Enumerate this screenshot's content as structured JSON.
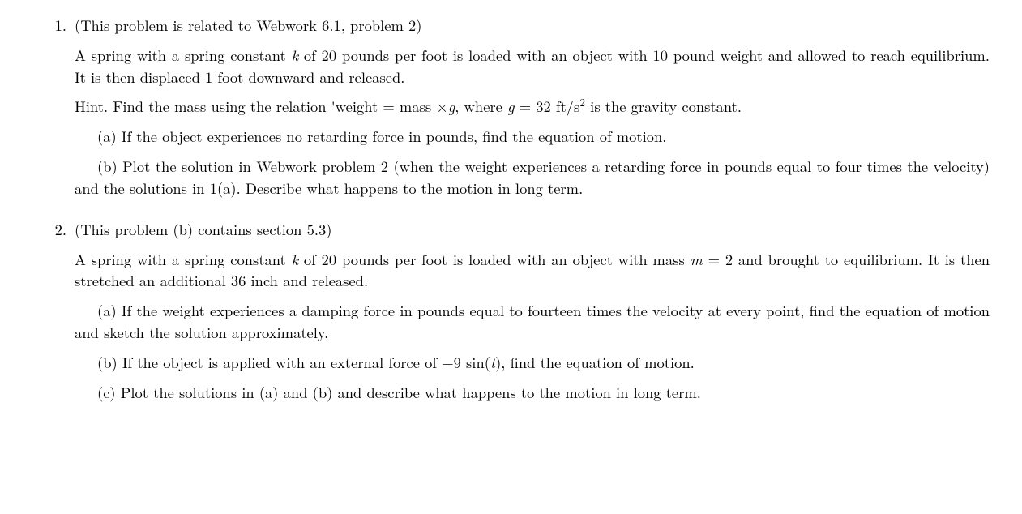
{
  "problems": [
    {
      "number": "1.",
      "intro": "(This problem is related to Webwork 6.1, problem 2)",
      "desc_pre": "A spring with a spring constant ",
      "k_var": "k",
      "desc_post_k": " of 20 pounds per foot is loaded with an object with 10 pound weight and allowed to reach equilibrium. It is then displaced 1 foot downward and released.",
      "hint_pre": "Hint. Find the mass using the relation 'weight = mass ×",
      "g_var": "g",
      "hint_mid": ", where ",
      "g_var2": "g",
      "hint_eq": " = 32 ft/s",
      "hint_sup": "2",
      "hint_post": " is the gravity constant.",
      "part_a": "(a) If the object experiences no retarding force in pounds, find the equation of motion.",
      "part_b": "(b) Plot the solution in Webwork problem 2 (when the weight experiences a retarding force in pounds equal to four times the velocity) and the solutions in 1(a).  Describe what happens to the motion in long term."
    },
    {
      "number": "2.",
      "intro": "(This problem (b) contains section 5.3)",
      "desc_pre": "A spring with a spring constant ",
      "k_var": "k",
      "desc_mid": " of 20 pounds per foot is loaded with an object with mass ",
      "m_var": "m",
      "desc_eq": " = 2 and brought to equilibrium. It is then stretched an additional 36 inch and released.",
      "part_a": "(a) If the weight experiences a damping force in pounds equal to fourteen times the velocity at every point, find the equation of motion and sketch the solution approximately.",
      "part_b_pre": "(b) If the object is applied with an external force of −9 sin(",
      "t_var": "t",
      "part_b_post": "), find the equation of motion.",
      "part_c": "(c) Plot the solutions in (a) and (b) and describe what happens to the motion in long term."
    }
  ]
}
